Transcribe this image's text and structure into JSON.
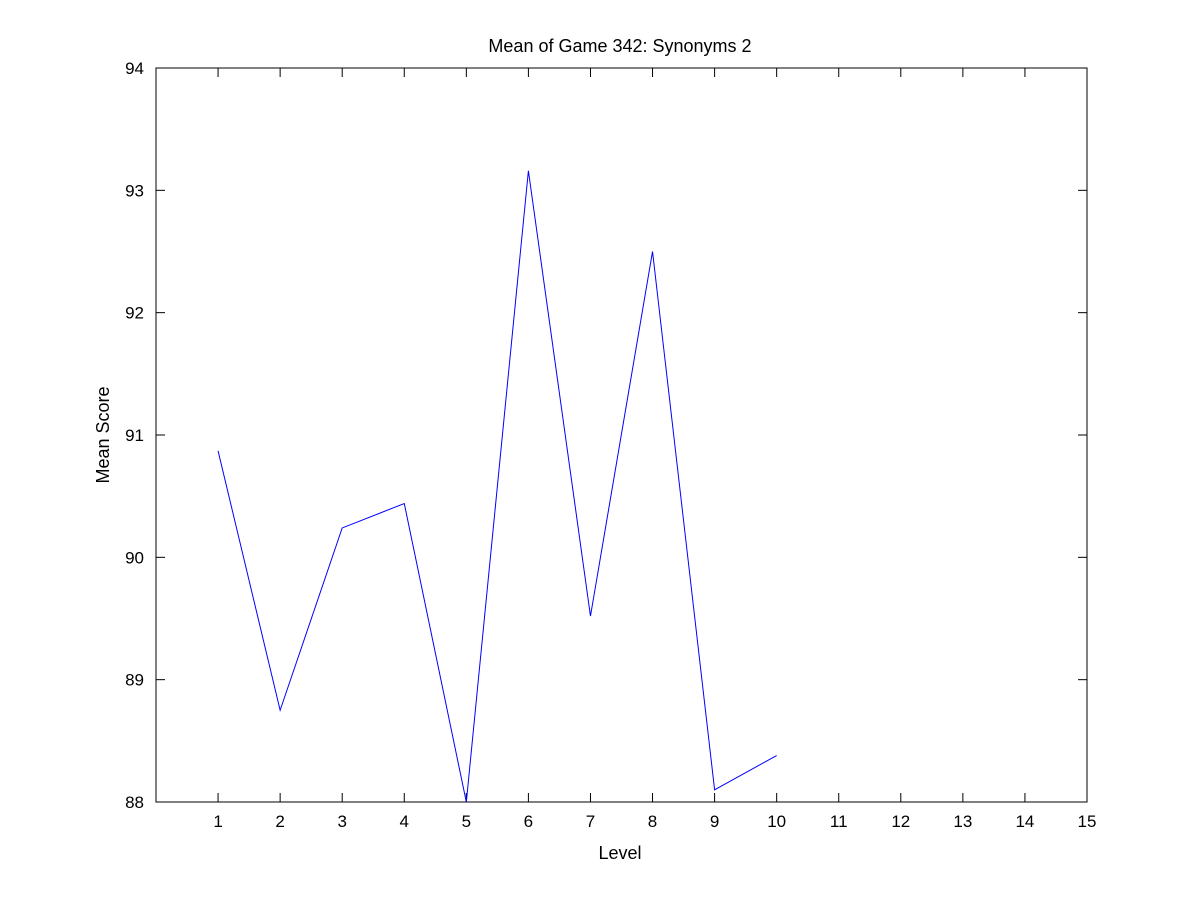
{
  "chart_data": {
    "type": "line",
    "title": "Mean of Game 342: Synonyms 2",
    "xlabel": "Level",
    "ylabel": "Mean Score",
    "xlim": [
      0,
      15
    ],
    "ylim": [
      88,
      94
    ],
    "xticks": [
      1,
      2,
      3,
      4,
      5,
      6,
      7,
      8,
      9,
      10,
      11,
      12,
      13,
      14,
      15
    ],
    "yticks": [
      88,
      89,
      90,
      91,
      92,
      93,
      94
    ],
    "grid": false,
    "legend": "none",
    "series": [
      {
        "color": "#0000ff",
        "x": [
          1,
          2,
          3,
          4,
          5,
          6,
          7,
          8,
          9,
          10
        ],
        "y": [
          90.87,
          88.75,
          90.24,
          90.44,
          88.0,
          93.16,
          89.52,
          92.5,
          88.1,
          88.38
        ]
      }
    ]
  }
}
